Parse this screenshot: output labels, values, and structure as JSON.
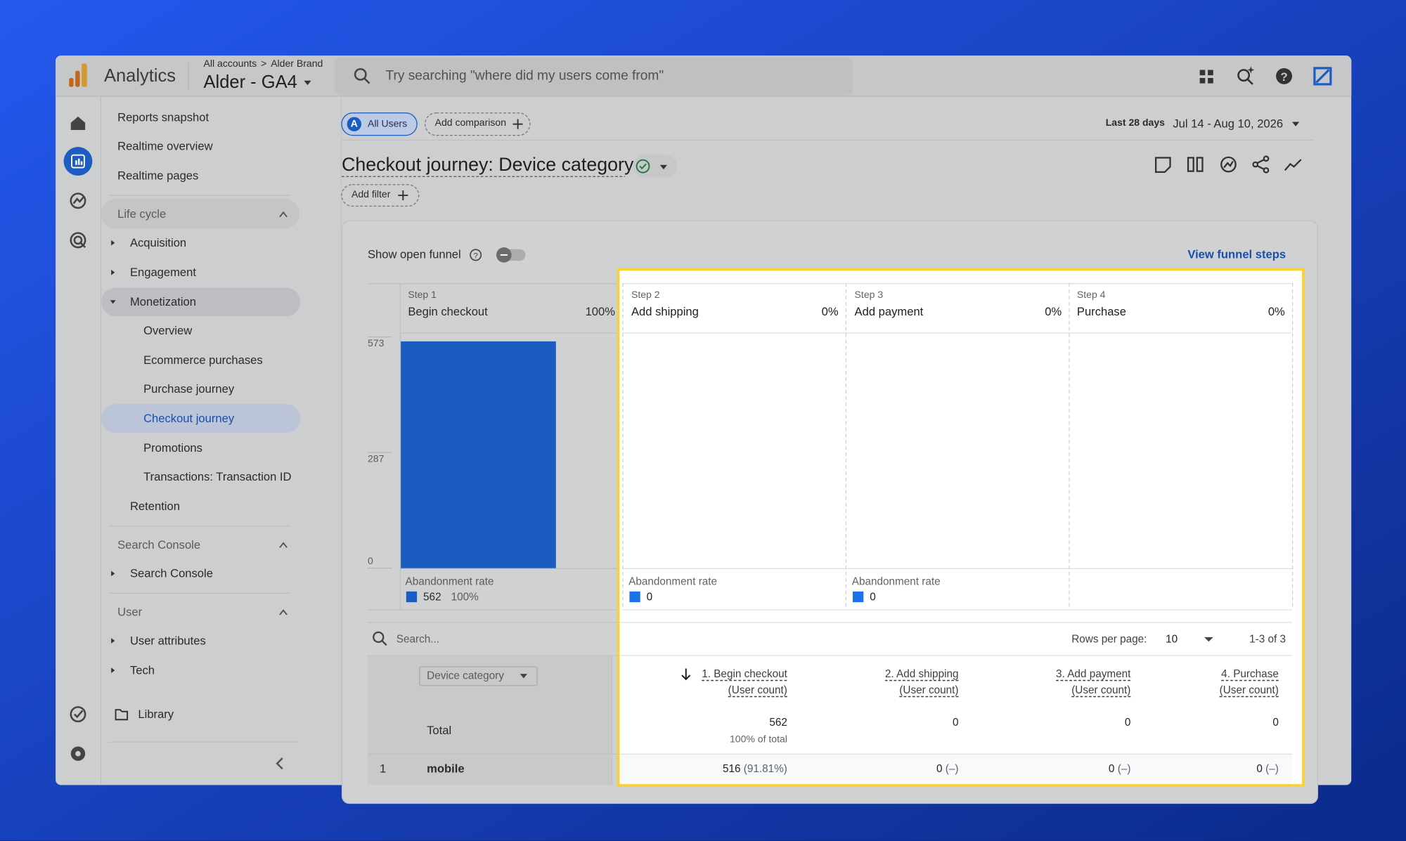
{
  "header": {
    "product": "Analytics",
    "breadcrumb": {
      "root": "All accounts",
      "account": "Alder Brand"
    },
    "property": "Alder - GA4",
    "search_placeholder": "Try searching \"where did my users come from\""
  },
  "sidebar": {
    "links": [
      "Reports snapshot",
      "Realtime overview",
      "Realtime pages"
    ],
    "life_cycle": {
      "title": "Life cycle",
      "items": [
        "Acquisition",
        "Engagement",
        "Monetization",
        "Retention"
      ],
      "monetization": [
        "Overview",
        "Ecommerce purchases",
        "Purchase journey",
        "Checkout journey",
        "Promotions",
        "Transactions: Transaction ID"
      ]
    },
    "search_console": {
      "title": "Search Console",
      "items": [
        "Search Console"
      ]
    },
    "user": {
      "title": "User",
      "items": [
        "User attributes",
        "Tech"
      ]
    },
    "library": "Library"
  },
  "toolbar": {
    "segment_badge": "A",
    "segment": "All Users",
    "add_comparison": "Add comparison",
    "date_preset": "Last 28 days",
    "date_range": "Jul 14 - Aug 10, 2026"
  },
  "report": {
    "title": "Checkout journey: Device category",
    "add_filter": "Add filter",
    "show_open_funnel": "Show open funnel",
    "view_funnel_steps": "View funnel steps"
  },
  "funnel": {
    "ylim": [
      0,
      573
    ],
    "yticks": [
      0,
      287,
      573
    ],
    "steps": [
      {
        "step": "Step 1",
        "name": "Begin checkout",
        "percent": "100%",
        "abandonment_rate": "Abandonment rate",
        "abandonments": 562,
        "abandonment_percent": "100%"
      },
      {
        "step": "Step 2",
        "name": "Add shipping",
        "percent": "0%",
        "abandonment_rate": "Abandonment rate",
        "abandonments": 0
      },
      {
        "step": "Step 3",
        "name": "Add payment",
        "percent": "0%",
        "abandonment_rate": "Abandonment rate",
        "abandonments": 0
      },
      {
        "step": "Step 4",
        "name": "Purchase",
        "percent": "0%"
      }
    ]
  },
  "table": {
    "search_placeholder": "Search...",
    "rows_per_page_label": "Rows per page:",
    "rows_per_page": 10,
    "pagination": "1-3 of 3",
    "dimension": "Device category",
    "columns": [
      {
        "title": "1. Begin checkout",
        "metric": "(User count)"
      },
      {
        "title": "2. Add shipping",
        "metric": "(User count)"
      },
      {
        "title": "3. Add payment",
        "metric": "(User count)"
      },
      {
        "title": "4. Purchase",
        "metric": "(User count)"
      }
    ],
    "total": {
      "label": "Total",
      "values": [
        562,
        0,
        0,
        0
      ],
      "note": "100% of total"
    },
    "rows": [
      {
        "index": 1,
        "name": "mobile",
        "cells": [
          {
            "value": 516,
            "share": "(91.81%)"
          },
          {
            "value": 0,
            "share": "(–)"
          },
          {
            "value": 0,
            "share": "(–)"
          },
          {
            "value": 0,
            "share": "(–)"
          }
        ]
      }
    ]
  }
}
